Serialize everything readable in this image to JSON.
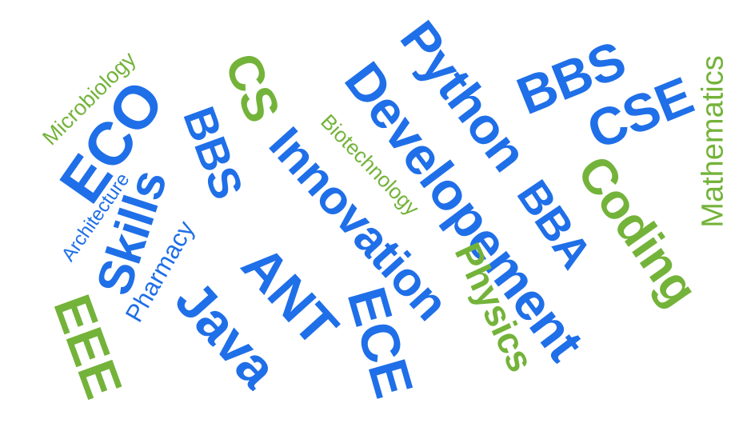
{
  "colors": {
    "background": "#ffffff",
    "blue": "#1f6fe8",
    "green": "#74b33a"
  },
  "words": [
    {
      "id": "microbiology",
      "text": "Microbiology",
      "color": "green"
    },
    {
      "id": "eco",
      "text": "ECO",
      "color": "blue"
    },
    {
      "id": "architecture",
      "text": "Architecture",
      "color": "blue"
    },
    {
      "id": "skills",
      "text": "Skills",
      "color": "blue"
    },
    {
      "id": "pharmacy",
      "text": "Pharmacy",
      "color": "blue"
    },
    {
      "id": "eee",
      "text": "EEE",
      "color": "green"
    },
    {
      "id": "bbs-left",
      "text": "BBS",
      "color": "blue"
    },
    {
      "id": "cs",
      "text": "CS",
      "color": "green"
    },
    {
      "id": "java",
      "text": "Java",
      "color": "blue"
    },
    {
      "id": "ant",
      "text": "ANT",
      "color": "blue"
    },
    {
      "id": "innovation",
      "text": "Innovation",
      "color": "blue"
    },
    {
      "id": "ece",
      "text": "ECE",
      "color": "blue"
    },
    {
      "id": "biotechnology",
      "text": "Biotechnology",
      "color": "green"
    },
    {
      "id": "developement",
      "text": "Developement",
      "color": "blue"
    },
    {
      "id": "python",
      "text": "Python",
      "color": "blue"
    },
    {
      "id": "bba",
      "text": "BBA",
      "color": "blue"
    },
    {
      "id": "physics",
      "text": "Physics",
      "color": "green"
    },
    {
      "id": "bbs-right",
      "text": "BBS",
      "color": "blue"
    },
    {
      "id": "cse",
      "text": "CSE",
      "color": "blue"
    },
    {
      "id": "coding",
      "text": "Coding",
      "color": "green"
    },
    {
      "id": "mathematics",
      "text": "Mathematics",
      "color": "green"
    }
  ]
}
